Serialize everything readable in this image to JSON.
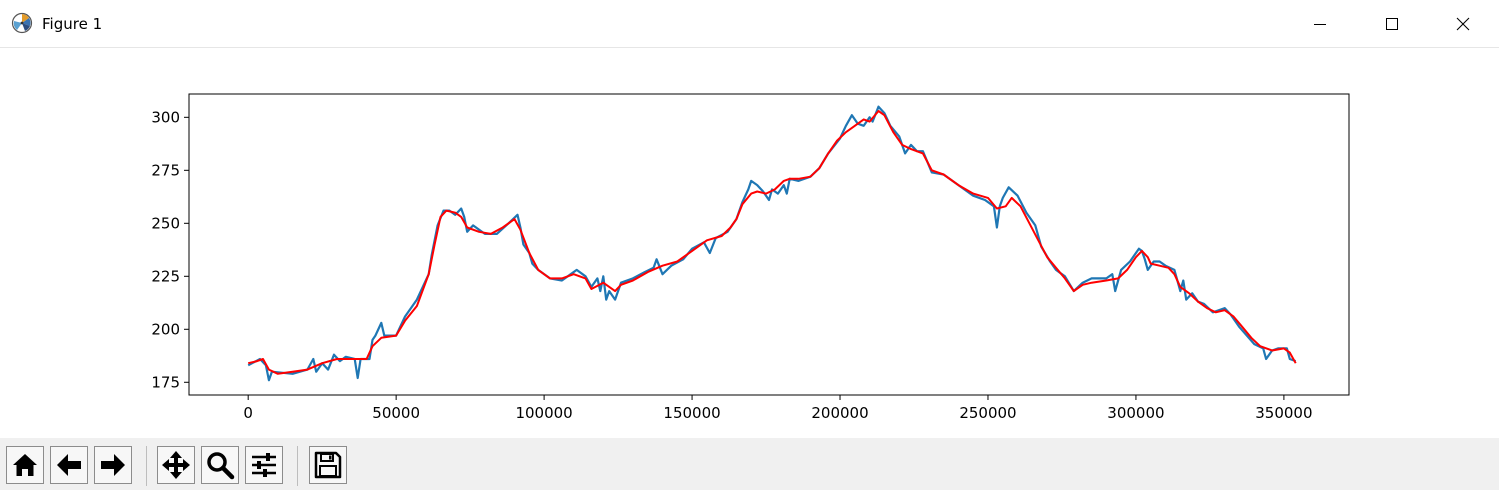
{
  "window": {
    "title": "Figure 1",
    "controls": [
      "minimize-icon",
      "maximize-icon",
      "close-icon"
    ]
  },
  "toolbar": {
    "buttons": [
      {
        "name": "home",
        "icon": "home-icon"
      },
      {
        "name": "back",
        "icon": "arrow-left-icon"
      },
      {
        "name": "forward",
        "icon": "arrow-right-icon"
      },
      {
        "name": "pan",
        "icon": "move-icon"
      },
      {
        "name": "zoom",
        "icon": "magnifier-icon"
      },
      {
        "name": "configure-subplots",
        "icon": "sliders-icon"
      },
      {
        "name": "save",
        "icon": "floppy-icon"
      }
    ]
  },
  "chart_data": {
    "type": "line",
    "title": "",
    "xlabel": "",
    "ylabel": "",
    "xlim": [
      -20000,
      372000
    ],
    "ylim": [
      169,
      311
    ],
    "xticks": [
      0,
      50000,
      100000,
      150000,
      200000,
      250000,
      300000,
      350000
    ],
    "yticks": [
      175,
      200,
      225,
      250,
      275,
      300
    ],
    "grid": false,
    "legend": "none",
    "series": [
      {
        "color": "#1f77b4",
        "points": [
          [
            0,
            183
          ],
          [
            4000,
            186
          ],
          [
            6000,
            183
          ],
          [
            7000,
            176
          ],
          [
            8000,
            180
          ],
          [
            15000,
            179
          ],
          [
            20000,
            181
          ],
          [
            22000,
            186
          ],
          [
            23000,
            180
          ],
          [
            25000,
            184
          ],
          [
            27000,
            181
          ],
          [
            29000,
            188
          ],
          [
            31000,
            185
          ],
          [
            33000,
            187
          ],
          [
            36000,
            186
          ],
          [
            37000,
            177
          ],
          [
            38000,
            186
          ],
          [
            41000,
            186
          ],
          [
            42000,
            195
          ],
          [
            43000,
            197
          ],
          [
            45000,
            203
          ],
          [
            46000,
            197
          ],
          [
            50000,
            197
          ],
          [
            53000,
            206
          ],
          [
            57000,
            214
          ],
          [
            61000,
            226
          ],
          [
            62000,
            235
          ],
          [
            64000,
            249
          ],
          [
            66000,
            256
          ],
          [
            68000,
            256
          ],
          [
            70000,
            254
          ],
          [
            72000,
            257
          ],
          [
            73000,
            253
          ],
          [
            74000,
            246
          ],
          [
            76000,
            249
          ],
          [
            80000,
            245
          ],
          [
            84000,
            245
          ],
          [
            88000,
            250
          ],
          [
            91000,
            254
          ],
          [
            92000,
            248
          ],
          [
            93000,
            240
          ],
          [
            95000,
            236
          ],
          [
            96000,
            231
          ],
          [
            98000,
            228
          ],
          [
            102000,
            224
          ],
          [
            106000,
            223
          ],
          [
            109000,
            226
          ],
          [
            111000,
            228
          ],
          [
            114000,
            225
          ],
          [
            116000,
            220
          ],
          [
            118000,
            224
          ],
          [
            119000,
            218
          ],
          [
            120000,
            225
          ],
          [
            121000,
            214
          ],
          [
            122000,
            218
          ],
          [
            124000,
            214
          ],
          [
            126000,
            222
          ],
          [
            130000,
            224
          ],
          [
            134000,
            227
          ],
          [
            137000,
            229
          ],
          [
            138000,
            233
          ],
          [
            140000,
            226
          ],
          [
            143000,
            230
          ],
          [
            147000,
            233
          ],
          [
            150000,
            238
          ],
          [
            154000,
            241
          ],
          [
            156000,
            236
          ],
          [
            158000,
            243
          ],
          [
            162000,
            246
          ],
          [
            165000,
            252
          ],
          [
            167000,
            260
          ],
          [
            169000,
            266
          ],
          [
            170000,
            270
          ],
          [
            172000,
            268
          ],
          [
            174000,
            265
          ],
          [
            176000,
            261
          ],
          [
            177000,
            266
          ],
          [
            179000,
            264
          ],
          [
            181000,
            268
          ],
          [
            182000,
            264
          ],
          [
            183000,
            271
          ],
          [
            186000,
            270
          ],
          [
            190000,
            272
          ],
          [
            193000,
            276
          ],
          [
            196000,
            283
          ],
          [
            200000,
            290
          ],
          [
            202000,
            296
          ],
          [
            204000,
            301
          ],
          [
            206000,
            297
          ],
          [
            208000,
            296
          ],
          [
            210000,
            300
          ],
          [
            211000,
            298
          ],
          [
            213000,
            305
          ],
          [
            215000,
            302
          ],
          [
            217000,
            296
          ],
          [
            220000,
            291
          ],
          [
            222000,
            283
          ],
          [
            224000,
            287
          ],
          [
            226000,
            284
          ],
          [
            228000,
            284
          ],
          [
            231000,
            274
          ],
          [
            235000,
            273
          ],
          [
            240000,
            268
          ],
          [
            245000,
            263
          ],
          [
            249000,
            261
          ],
          [
            252000,
            258
          ],
          [
            253000,
            248
          ],
          [
            254000,
            258
          ],
          [
            255000,
            262
          ],
          [
            257000,
            267
          ],
          [
            260000,
            263
          ],
          [
            263000,
            255
          ],
          [
            266000,
            249
          ],
          [
            268000,
            239
          ],
          [
            271000,
            232
          ],
          [
            273000,
            228
          ],
          [
            276000,
            225
          ],
          [
            279000,
            218
          ],
          [
            282000,
            222
          ],
          [
            285000,
            224
          ],
          [
            290000,
            224
          ],
          [
            292000,
            226
          ],
          [
            293000,
            218
          ],
          [
            295000,
            228
          ],
          [
            298000,
            232
          ],
          [
            301000,
            238
          ],
          [
            302000,
            237
          ],
          [
            303000,
            233
          ],
          [
            304000,
            228
          ],
          [
            306000,
            232
          ],
          [
            308000,
            232
          ],
          [
            310000,
            230
          ],
          [
            313000,
            228
          ],
          [
            315000,
            218
          ],
          [
            316000,
            223
          ],
          [
            317000,
            214
          ],
          [
            319000,
            217
          ],
          [
            321000,
            213
          ],
          [
            323000,
            212
          ],
          [
            326000,
            208
          ],
          [
            330000,
            210
          ],
          [
            332000,
            207
          ],
          [
            335000,
            201
          ],
          [
            340000,
            193
          ],
          [
            343000,
            191
          ],
          [
            344000,
            186
          ],
          [
            346000,
            190
          ],
          [
            348000,
            191
          ],
          [
            351000,
            191
          ],
          [
            352000,
            186
          ],
          [
            354000,
            185
          ]
        ]
      },
      {
        "color": "#ff0000",
        "points": [
          [
            0,
            184
          ],
          [
            3000,
            185
          ],
          [
            5000,
            186
          ],
          [
            7000,
            181
          ],
          [
            10000,
            179
          ],
          [
            15000,
            180
          ],
          [
            20000,
            181
          ],
          [
            25000,
            184
          ],
          [
            30000,
            186
          ],
          [
            35000,
            186
          ],
          [
            40000,
            186
          ],
          [
            42000,
            192
          ],
          [
            45000,
            196
          ],
          [
            50000,
            197
          ],
          [
            53000,
            204
          ],
          [
            57000,
            211
          ],
          [
            61000,
            226
          ],
          [
            63000,
            240
          ],
          [
            65000,
            253
          ],
          [
            67000,
            256
          ],
          [
            70000,
            255
          ],
          [
            72000,
            253
          ],
          [
            74000,
            248
          ],
          [
            78000,
            246
          ],
          [
            82000,
            245
          ],
          [
            86000,
            248
          ],
          [
            90000,
            252
          ],
          [
            92000,
            247
          ],
          [
            95000,
            236
          ],
          [
            98000,
            228
          ],
          [
            102000,
            224
          ],
          [
            106000,
            224
          ],
          [
            110000,
            226
          ],
          [
            114000,
            224
          ],
          [
            116000,
            219
          ],
          [
            120000,
            222
          ],
          [
            124000,
            218
          ],
          [
            126000,
            221
          ],
          [
            130000,
            223
          ],
          [
            135000,
            227
          ],
          [
            140000,
            230
          ],
          [
            145000,
            232
          ],
          [
            150000,
            237
          ],
          [
            155000,
            242
          ],
          [
            160000,
            244
          ],
          [
            163000,
            248
          ],
          [
            165000,
            252
          ],
          [
            167000,
            259
          ],
          [
            170000,
            264
          ],
          [
            172000,
            265
          ],
          [
            175000,
            264
          ],
          [
            178000,
            266
          ],
          [
            181000,
            270
          ],
          [
            183000,
            271
          ],
          [
            186000,
            271
          ],
          [
            190000,
            272
          ],
          [
            193000,
            276
          ],
          [
            196000,
            283
          ],
          [
            199000,
            289
          ],
          [
            202000,
            293
          ],
          [
            206000,
            297
          ],
          [
            208000,
            299
          ],
          [
            210000,
            298
          ],
          [
            213000,
            303
          ],
          [
            215000,
            301
          ],
          [
            218000,
            293
          ],
          [
            221000,
            287
          ],
          [
            224000,
            285
          ],
          [
            228000,
            283
          ],
          [
            231000,
            275
          ],
          [
            235000,
            273
          ],
          [
            240000,
            268
          ],
          [
            245000,
            264
          ],
          [
            250000,
            262
          ],
          [
            253000,
            257
          ],
          [
            256000,
            258
          ],
          [
            258000,
            262
          ],
          [
            261000,
            258
          ],
          [
            264000,
            250
          ],
          [
            267000,
            242
          ],
          [
            270000,
            234
          ],
          [
            273000,
            229
          ],
          [
            276000,
            224
          ],
          [
            279000,
            218
          ],
          [
            282000,
            221
          ],
          [
            285000,
            222
          ],
          [
            290000,
            223
          ],
          [
            294000,
            224
          ],
          [
            297000,
            228
          ],
          [
            300000,
            234
          ],
          [
            302000,
            237
          ],
          [
            304000,
            234
          ],
          [
            305000,
            231
          ],
          [
            308000,
            230
          ],
          [
            311000,
            229
          ],
          [
            313000,
            226
          ],
          [
            315000,
            220
          ],
          [
            318000,
            217
          ],
          [
            321000,
            213
          ],
          [
            324000,
            210
          ],
          [
            327000,
            208
          ],
          [
            330000,
            209
          ],
          [
            333000,
            206
          ],
          [
            336000,
            201
          ],
          [
            339000,
            196
          ],
          [
            342000,
            192
          ],
          [
            346000,
            190
          ],
          [
            350000,
            191
          ],
          [
            352000,
            189
          ],
          [
            354000,
            184
          ]
        ]
      }
    ]
  }
}
